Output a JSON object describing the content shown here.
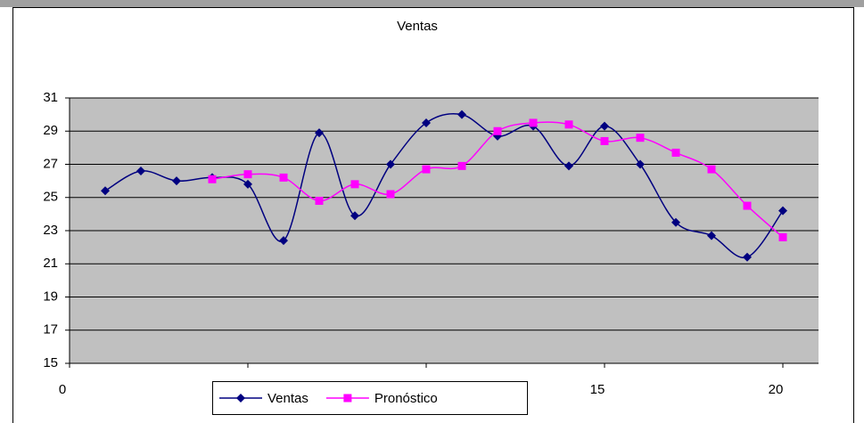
{
  "chart_data": {
    "type": "line",
    "title": "Ventas",
    "series": [
      {
        "name": "Ventas",
        "color": "#000080",
        "marker": "diamond",
        "x": [
          1,
          2,
          3,
          4,
          5,
          6,
          7,
          8,
          9,
          10,
          11,
          12,
          13,
          14,
          15,
          16,
          17,
          18,
          19,
          20
        ],
        "values": [
          25.4,
          26.6,
          26.0,
          26.2,
          25.8,
          22.4,
          28.9,
          23.9,
          27.0,
          29.5,
          30.0,
          28.7,
          29.3,
          26.9,
          29.3,
          27.0,
          23.5,
          22.7,
          21.4,
          24.2
        ]
      },
      {
        "name": "Pronóstico",
        "color": "#ff00ff",
        "marker": "square",
        "x": [
          4,
          5,
          6,
          7,
          8,
          9,
          10,
          11,
          12,
          13,
          14,
          15,
          16,
          17,
          18,
          19,
          20
        ],
        "values": [
          26.1,
          26.4,
          26.2,
          24.8,
          25.8,
          25.2,
          26.7,
          26.9,
          29.0,
          29.5,
          29.4,
          28.4,
          28.6,
          27.7,
          26.7,
          24.5,
          22.6
        ]
      }
    ],
    "xlim": [
      0,
      21
    ],
    "xticks": [
      0,
      5,
      10,
      15,
      20
    ],
    "ylim": [
      15,
      31
    ],
    "yticks": [
      15,
      17,
      19,
      21,
      23,
      25,
      27,
      29,
      31
    ],
    "grid": true,
    "smooth": true,
    "legend": "bottom",
    "plot_background": "#c0c0c0"
  }
}
